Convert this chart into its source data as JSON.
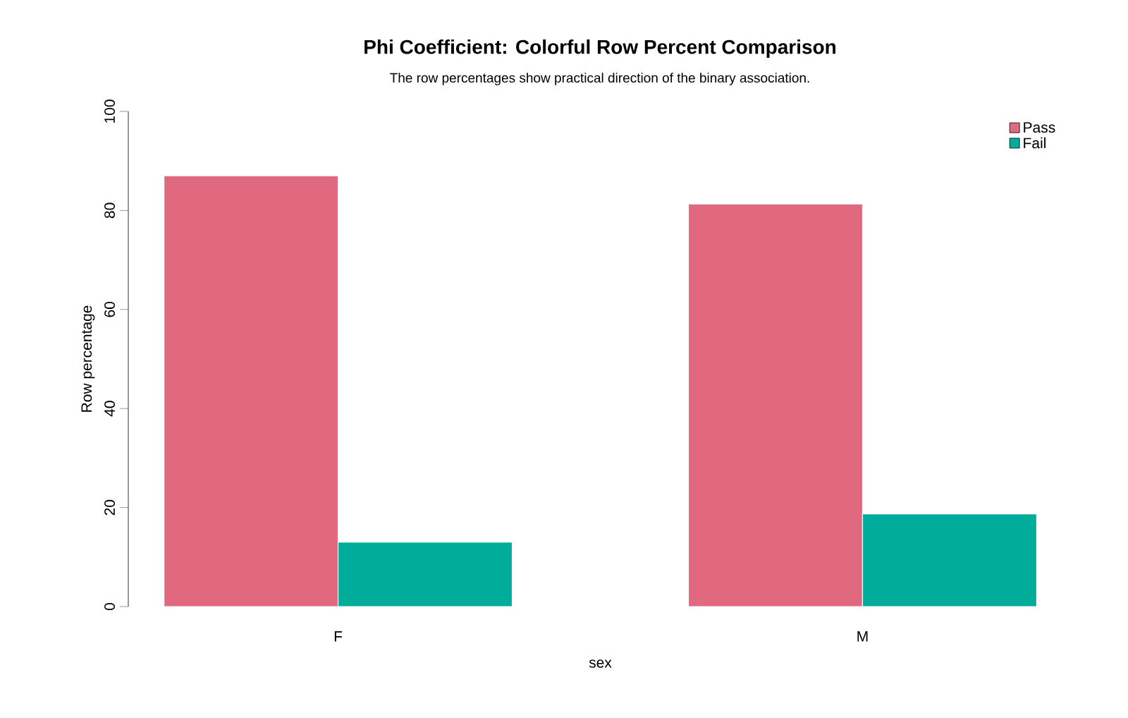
{
  "chart_data": {
    "type": "bar",
    "title": "Phi Coefficient: Colorful Row Percent Comparison",
    "subtitle": "The row percentages show practical direction of the binary association.",
    "xlabel": "sex",
    "ylabel": "Row percentage",
    "categories": [
      "F",
      "M"
    ],
    "series": [
      {
        "name": "Pass",
        "color": "#e0687f",
        "values": [
          87.0,
          81.3
        ]
      },
      {
        "name": "Fail",
        "color": "#00ad9a",
        "values": [
          13.0,
          18.7
        ]
      }
    ],
    "ylim": [
      0,
      100
    ],
    "yticks": [
      0,
      20,
      40,
      60,
      80,
      100
    ],
    "legend": "top right"
  }
}
